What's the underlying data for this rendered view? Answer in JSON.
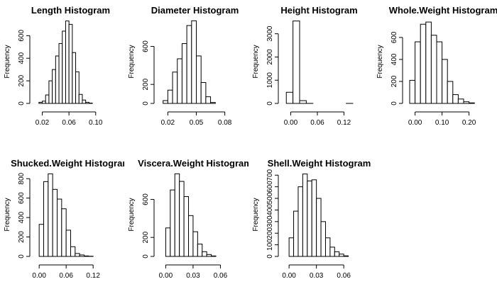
{
  "chart_data": [
    {
      "type": "histogram",
      "title": "Length Histogram",
      "ylabel": "Frequency",
      "color": "#ffffff",
      "bins": [
        0.015,
        0.02,
        0.025,
        0.03,
        0.035,
        0.04,
        0.045,
        0.05,
        0.055,
        0.06,
        0.065,
        0.07,
        0.075,
        0.08,
        0.085,
        0.09,
        0.095
      ],
      "counts": [
        10,
        20,
        75,
        200,
        300,
        420,
        530,
        640,
        730,
        700,
        450,
        280,
        80,
        30,
        10,
        3
      ],
      "xlim": [
        0.012,
        0.113
      ],
      "xticks": [
        0.02,
        0.06,
        {
          "value": 0.1,
          "label": "0.10"
        }
      ],
      "ylim": [
        0,
        740
      ],
      "yticks": [
        0,
        200,
        400,
        600
      ]
    },
    {
      "type": "histogram",
      "title": "Diameter Histogram",
      "ylabel": "Frequency",
      "color": "#ffffff",
      "bins": [
        0.015,
        0.02,
        0.025,
        0.03,
        0.035,
        0.04,
        0.045,
        0.05,
        0.055,
        0.06,
        0.065,
        0.07
      ],
      "counts": [
        30,
        140,
        330,
        470,
        630,
        820,
        870,
        500,
        220,
        70,
        10
      ],
      "xlim": [
        0.013,
        0.084
      ],
      "xticks": [
        0.02,
        0.05,
        0.08
      ],
      "ylim": [
        0,
        880
      ],
      "yticks": [
        0,
        200,
        600
      ]
    },
    {
      "type": "histogram",
      "title": "Height Histogram",
      "ylabel": "Frequency",
      "color": "#ffffff",
      "bins": [
        -0.01,
        0.005,
        0.02,
        0.035,
        0.05,
        0.065,
        0.08,
        0.095,
        0.11,
        0.125,
        0.14
      ],
      "counts": [
        480,
        3550,
        120,
        2,
        0,
        0,
        0,
        0,
        0,
        1
      ],
      "xlim": [
        -0.012,
        0.14
      ],
      "xticks": [
        {
          "value": 0,
          "label": "0.00"
        },
        0.06,
        0.12
      ],
      "ylim": [
        0,
        3600
      ],
      "yticks": [
        0,
        1000,
        2000,
        3000
      ]
    },
    {
      "type": "histogram",
      "title": "Whole.Weight Histogram",
      "ylabel": "Frequency",
      "color": "#ffffff",
      "bins": [
        -0.02,
        0,
        0.02,
        0.04,
        0.06,
        0.08,
        0.1,
        0.12,
        0.14,
        0.16,
        0.18,
        0.2,
        0.22
      ],
      "counts": [
        210,
        560,
        720,
        740,
        620,
        560,
        400,
        200,
        80,
        40,
        15,
        5
      ],
      "xlim": [
        -0.02,
        0.23
      ],
      "xticks": [
        {
          "value": 0,
          "label": "0.00"
        },
        {
          "value": 0.1,
          "label": "0.10"
        },
        {
          "value": 0.2,
          "label": "0.20"
        }
      ],
      "ylim": [
        0,
        760
      ],
      "yticks": [
        0,
        200,
        400,
        600
      ]
    },
    {
      "type": "histogram",
      "title": "Shucked.Weight Histogram",
      "ylabel": "Frequency",
      "color": "#ffffff",
      "bins": [
        0,
        0.01,
        0.02,
        0.03,
        0.04,
        0.05,
        0.06,
        0.07,
        0.08,
        0.09,
        0.1,
        0.11,
        0.12
      ],
      "counts": [
        330,
        770,
        850,
        690,
        590,
        490,
        270,
        100,
        30,
        15,
        5,
        2
      ],
      "xlim": [
        -0.005,
        0.145
      ],
      "xticks": [
        {
          "value": 0,
          "label": "0.00"
        },
        0.06,
        0.12
      ],
      "ylim": [
        0,
        860
      ],
      "yticks": [
        0,
        200,
        400,
        600,
        800
      ]
    },
    {
      "type": "histogram",
      "title": "Viscera.Weight Histogram",
      "ylabel": "Frequency",
      "color": "#ffffff",
      "bins": [
        0,
        0.005,
        0.01,
        0.015,
        0.02,
        0.025,
        0.03,
        0.035,
        0.04,
        0.045,
        0.05,
        0.055
      ],
      "counts": [
        300,
        700,
        870,
        790,
        630,
        430,
        260,
        130,
        50,
        20,
        5
      ],
      "xlim": [
        -0.005,
        0.069
      ],
      "xticks": [
        {
          "value": 0,
          "label": "0.00"
        },
        0.03,
        0.06
      ],
      "ylim": [
        0,
        880
      ],
      "yticks": [
        0,
        200,
        600
      ]
    },
    {
      "type": "histogram",
      "title": "Shell.Weight Histogram",
      "ylabel": "Frequency",
      "color": "#ffffff",
      "bins": [
        0,
        0.005,
        0.01,
        0.015,
        0.02,
        0.025,
        0.03,
        0.035,
        0.04,
        0.045,
        0.05,
        0.055,
        0.06,
        0.065
      ],
      "counts": [
        160,
        390,
        600,
        710,
        650,
        660,
        500,
        300,
        160,
        80,
        40,
        20,
        5
      ],
      "xlim": [
        -0.004,
        0.07
      ],
      "xticks": [
        {
          "value": 0,
          "label": "0.00"
        },
        0.03,
        0.06
      ],
      "ylim": [
        0,
        720
      ],
      "yticks": [
        0,
        100,
        200,
        300,
        400,
        500,
        600,
        700
      ]
    }
  ]
}
